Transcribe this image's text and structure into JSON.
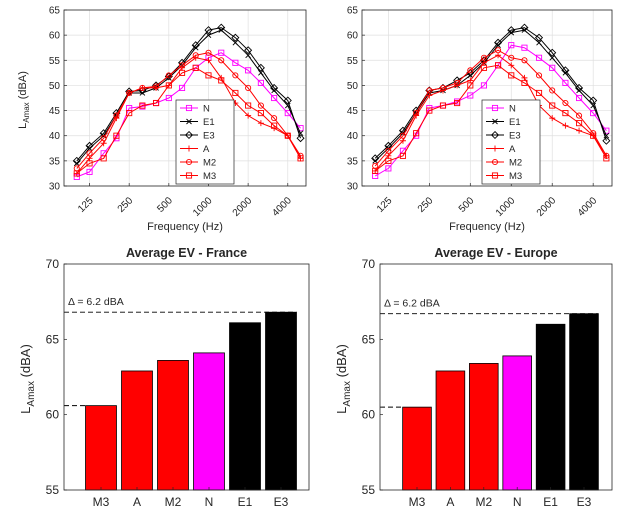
{
  "chart_data": [
    {
      "type": "line",
      "title": "",
      "xlabel": "Frequency (Hz)",
      "ylabel_main": "L",
      "ylabel_sub": "Amax",
      "ylabel_unit": " (dBA)",
      "x_scale": "log",
      "xlim": [
        80,
        5500
      ],
      "ylim": [
        30,
        65
      ],
      "grid": true,
      "legend_position": "bottom-right",
      "x_ticks": [
        {
          "value": 125,
          "label": "125"
        },
        {
          "value": 250,
          "label": "250"
        },
        {
          "value": 500,
          "label": "500"
        },
        {
          "value": 1000,
          "label": "1000"
        },
        {
          "value": 2000,
          "label": "2000"
        },
        {
          "value": 4000,
          "label": "4000"
        }
      ],
      "y_ticks": [
        30,
        35,
        40,
        45,
        50,
        55,
        60,
        65
      ],
      "x": [
        100,
        125,
        160,
        200,
        250,
        315,
        400,
        500,
        630,
        800,
        1000,
        1250,
        1600,
        2000,
        2500,
        3150,
        4000,
        5000
      ],
      "series": [
        {
          "name": "N",
          "color": "#ff00ff",
          "marker": "square",
          "values": [
            31.8,
            32.8,
            36.5,
            39.5,
            45.5,
            45.8,
            46.5,
            47.5,
            49.5,
            53.5,
            55.5,
            56.5,
            54.5,
            53.0,
            50.5,
            47.5,
            44.5,
            41.5
          ]
        },
        {
          "name": "E1",
          "color": "#000000",
          "marker": "x",
          "values": [
            34.5,
            37.5,
            40.0,
            44.0,
            48.5,
            48.5,
            49.5,
            51.5,
            54.0,
            57.5,
            60.0,
            61.0,
            58.5,
            56.0,
            52.5,
            49.0,
            46.0,
            40.5
          ]
        },
        {
          "name": "E3",
          "color": "#000000",
          "marker": "diamond",
          "values": [
            35.0,
            38.0,
            40.5,
            44.5,
            48.8,
            49.0,
            50.0,
            51.8,
            54.5,
            58.0,
            61.0,
            61.5,
            59.5,
            57.0,
            53.5,
            49.5,
            47.0,
            39.5
          ]
        },
        {
          "name": "A",
          "color": "#ff0000",
          "marker": "plus",
          "values": [
            32.5,
            35.5,
            38.5,
            43.5,
            48.5,
            49.5,
            49.5,
            50.0,
            53.5,
            55.5,
            55.0,
            51.5,
            46.5,
            44.0,
            42.5,
            41.5,
            40.0,
            35.5
          ]
        },
        {
          "name": "M2",
          "color": "#ff0000",
          "marker": "circle",
          "values": [
            33.5,
            36.5,
            39.5,
            44.0,
            48.5,
            49.5,
            49.8,
            52.0,
            54.0,
            56.0,
            56.5,
            55.0,
            52.0,
            49.5,
            46.0,
            43.5,
            40.0,
            36.0
          ]
        },
        {
          "name": "M3",
          "color": "#ff0000",
          "marker": "square",
          "values": [
            32.5,
            34.5,
            35.5,
            40.0,
            44.5,
            46.0,
            46.5,
            50.0,
            52.5,
            53.5,
            52.0,
            51.0,
            48.5,
            46.0,
            44.5,
            42.0,
            40.0,
            35.5
          ]
        }
      ]
    },
    {
      "type": "line",
      "title": "",
      "xlabel": "Frequency (Hz)",
      "ylabel_main": "",
      "ylabel_sub": "",
      "ylabel_unit": "",
      "x_scale": "log",
      "xlim": [
        80,
        5500
      ],
      "ylim": [
        30,
        65
      ],
      "grid": true,
      "legend_position": "bottom-right",
      "x_ticks": [
        {
          "value": 125,
          "label": "125"
        },
        {
          "value": 250,
          "label": "250"
        },
        {
          "value": 500,
          "label": "500"
        },
        {
          "value": 1000,
          "label": "1000"
        },
        {
          "value": 2000,
          "label": "2000"
        },
        {
          "value": 4000,
          "label": "4000"
        }
      ],
      "y_ticks": [
        30,
        35,
        40,
        45,
        50,
        55,
        60,
        65
      ],
      "x": [
        100,
        125,
        160,
        200,
        250,
        315,
        400,
        500,
        630,
        800,
        1000,
        1250,
        1600,
        2000,
        2500,
        3150,
        4000,
        5000
      ],
      "series": [
        {
          "name": "N",
          "color": "#ff00ff",
          "marker": "square",
          "values": [
            32.0,
            33.5,
            37.0,
            40.0,
            45.5,
            46.0,
            46.8,
            48.0,
            50.0,
            54.0,
            58.0,
            57.5,
            55.5,
            53.5,
            50.5,
            47.5,
            44.5,
            41.0
          ]
        },
        {
          "name": "E1",
          "color": "#000000",
          "marker": "x",
          "values": [
            35.0,
            37.5,
            40.5,
            44.5,
            48.5,
            49.0,
            50.0,
            52.0,
            54.5,
            58.0,
            60.5,
            61.0,
            58.5,
            55.5,
            52.5,
            49.0,
            46.0,
            40.0
          ]
        },
        {
          "name": "E3",
          "color": "#000000",
          "marker": "diamond",
          "values": [
            35.5,
            38.0,
            41.0,
            45.0,
            49.0,
            49.5,
            51.0,
            52.5,
            55.0,
            58.5,
            61.0,
            61.5,
            59.5,
            56.5,
            53.0,
            49.5,
            47.0,
            39.0
          ]
        },
        {
          "name": "A",
          "color": "#ff0000",
          "marker": "plus",
          "values": [
            33.0,
            36.0,
            39.0,
            44.0,
            48.0,
            49.0,
            50.0,
            51.0,
            54.5,
            56.0,
            54.0,
            51.5,
            46.0,
            43.5,
            42.0,
            41.0,
            40.0,
            36.0
          ]
        },
        {
          "name": "M2",
          "color": "#ff0000",
          "marker": "circle",
          "values": [
            34.0,
            37.0,
            40.0,
            44.5,
            49.0,
            49.5,
            50.5,
            53.0,
            55.5,
            57.0,
            55.5,
            55.0,
            52.0,
            49.0,
            46.5,
            44.0,
            40.5,
            36.0
          ]
        },
        {
          "name": "M3",
          "color": "#ff0000",
          "marker": "square",
          "values": [
            33.0,
            35.0,
            36.0,
            40.5,
            45.0,
            46.0,
            46.5,
            50.0,
            53.5,
            54.0,
            52.0,
            50.5,
            48.5,
            46.0,
            44.5,
            42.5,
            40.0,
            35.5
          ]
        }
      ]
    },
    {
      "type": "bar",
      "title": "Average EV - France",
      "ylabel_main": "L",
      "ylabel_sub": "Amax",
      "ylabel_unit": " (dBA)",
      "ylim": [
        55,
        70
      ],
      "y_ticks": [
        55,
        60,
        65,
        70
      ],
      "grid": false,
      "categories": [
        "M3",
        "A",
        "M2",
        "N",
        "E1",
        "E3"
      ],
      "values": [
        60.6,
        62.9,
        63.6,
        64.1,
        66.1,
        66.8
      ],
      "colors": [
        "#ff0000",
        "#ff0000",
        "#ff0000",
        "#ff00ff",
        "#000000",
        "#000000"
      ],
      "annotation": "Δ = 6.2 dBA",
      "ref_lines": [
        60.6,
        66.8
      ]
    },
    {
      "type": "bar",
      "title": "Average EV - Europe",
      "ylabel_main": "L",
      "ylabel_sub": "Amax",
      "ylabel_unit": " (dBA)",
      "ylim": [
        55,
        70
      ],
      "y_ticks": [
        55,
        60,
        65,
        70
      ],
      "grid": false,
      "categories": [
        "M3",
        "A",
        "M2",
        "N",
        "E1",
        "E3"
      ],
      "values": [
        60.5,
        62.9,
        63.4,
        63.9,
        66.0,
        66.7
      ],
      "colors": [
        "#ff0000",
        "#ff0000",
        "#ff0000",
        "#ff00ff",
        "#000000",
        "#000000"
      ],
      "annotation": "Δ = 6.2 dBA",
      "ref_lines": [
        60.5,
        66.7
      ]
    }
  ]
}
